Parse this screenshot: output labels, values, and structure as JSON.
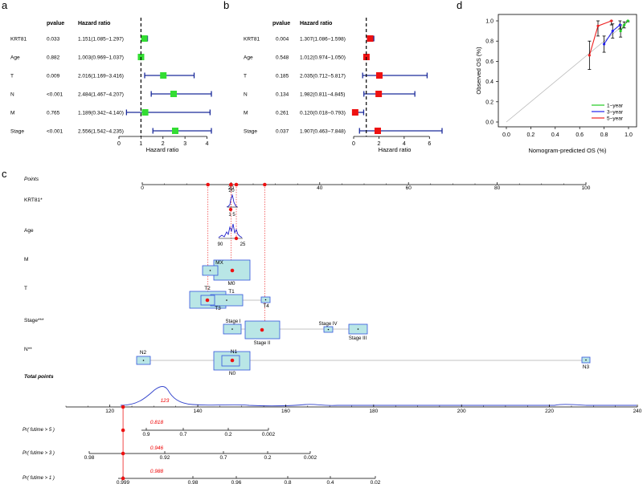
{
  "chart_data": [
    {
      "panel": "a",
      "type": "forest",
      "header": {
        "pvalue": "pvalue",
        "hr": "Hazard ratio"
      },
      "xlabel": "Hazard ratio",
      "xlim": [
        0,
        4.2
      ],
      "xticks": [
        0,
        1,
        2,
        3,
        4
      ],
      "ref_line": 1,
      "marker_color": "#33dd33",
      "rows": [
        {
          "label": "KRT81",
          "pvalue": "0.033",
          "hr_text": "1.151(1.085−1.297)",
          "hr": 1.151,
          "lo": 1.085,
          "hi": 1.297
        },
        {
          "label": "Age",
          "pvalue": "0.882",
          "hr_text": "1.003(0.969−1.037)",
          "hr": 1.003,
          "lo": 0.969,
          "hi": 1.037
        },
        {
          "label": "T",
          "pvalue": "0.009",
          "hr_text": "2.016(1.169−3.416)",
          "hr": 2.016,
          "lo": 1.169,
          "hi": 3.416
        },
        {
          "label": "N",
          "pvalue": "<0.001",
          "hr_text": "2.484(1.467−4.207)",
          "hr": 2.484,
          "lo": 1.467,
          "hi": 4.207
        },
        {
          "label": "M",
          "pvalue": "0.765",
          "hr_text": "1.189(0.342−4.140)",
          "hr": 1.189,
          "lo": 0.342,
          "hi": 4.14
        },
        {
          "label": "Stage",
          "pvalue": "<0.001",
          "hr_text": "2.556(1.542−4.235)",
          "hr": 2.556,
          "lo": 1.542,
          "hi": 4.235
        }
      ]
    },
    {
      "panel": "b",
      "type": "forest",
      "header": {
        "pvalue": "pvalue",
        "hr": "Hazard ratio"
      },
      "xlabel": "Hazard ratio",
      "xlim": [
        0,
        7
      ],
      "xticks": [
        0,
        2,
        4,
        6
      ],
      "ref_line": 1,
      "marker_color": "#ee1111",
      "rows": [
        {
          "label": "KRT81",
          "pvalue": "0.004",
          "hr_text": "1.307(1.086−1.598)",
          "hr": 1.307,
          "lo": 1.086,
          "hi": 1.598
        },
        {
          "label": "Age",
          "pvalue": "0.548",
          "hr_text": "1.012(0.974−1.050)",
          "hr": 1.012,
          "lo": 0.974,
          "hi": 1.05
        },
        {
          "label": "T",
          "pvalue": "0.185",
          "hr_text": "2.035(0.712−5.817)",
          "hr": 2.035,
          "lo": 0.712,
          "hi": 5.817
        },
        {
          "label": "N",
          "pvalue": "0.134",
          "hr_text": "1.982(0.811−4.845)",
          "hr": 1.982,
          "lo": 0.811,
          "hi": 4.845
        },
        {
          "label": "M",
          "pvalue": "0.261",
          "hr_text": "0.120(0.018−0.793)",
          "hr": 0.12,
          "lo": 0.018,
          "hi": 0.793
        },
        {
          "label": "Stage",
          "pvalue": "0.037",
          "hr_text": "1.907(0.463−7.848)",
          "hr": 1.907,
          "lo": 0.463,
          "hi": 7.848
        }
      ]
    },
    {
      "panel": "d",
      "type": "line",
      "title": "",
      "xlabel": "Nomogram-predicted OS (%)",
      "ylabel": "Observed OS (%)",
      "xlim": [
        0,
        1
      ],
      "ylim": [
        0,
        1
      ],
      "xticks": [
        "0.0",
        "0.2",
        "0.4",
        "0.6",
        "0.8",
        "1.0"
      ],
      "yticks": [
        "0.0",
        "0.2",
        "0.4",
        "0.6",
        "0.8",
        "1.0"
      ],
      "series": [
        {
          "name": "1−year",
          "color": "#22cc22",
          "x": [
            0.935,
            0.965,
            0.995
          ],
          "y": [
            0.9,
            0.96,
            1.0
          ],
          "err": [
            0.06,
            0.03,
            0.01
          ]
        },
        {
          "name": "3−year",
          "color": "#2222ee",
          "x": [
            0.8,
            0.87,
            0.93
          ],
          "y": [
            0.77,
            0.9,
            0.96
          ],
          "err": [
            0.08,
            0.07,
            0.04
          ]
        },
        {
          "name": "5−year",
          "color": "#ee2222",
          "x": [
            0.68,
            0.75,
            0.86
          ],
          "y": [
            0.66,
            0.95,
            1.0
          ],
          "err": [
            0.14,
            0.1,
            0.04
          ]
        }
      ]
    },
    {
      "panel": "c",
      "type": "nomogram",
      "points_axis": {
        "label": "Points",
        "range": [
          0,
          100
        ],
        "ticks": [
          "0",
          "20",
          "40",
          "60",
          "80",
          "100"
        ]
      },
      "variables": [
        {
          "label": "KRT81*",
          "ticks": [
            "20",
            "1",
            "5"
          ]
        },
        {
          "label": "Age",
          "ticks": [
            "90",
            "25"
          ]
        },
        {
          "label": "M",
          "boxes": [
            "MX",
            "M0"
          ]
        },
        {
          "label": "T",
          "boxes": [
            "T2",
            "T1",
            "T3",
            "T4"
          ]
        },
        {
          "label": "Stage***",
          "boxes": [
            "Stage I",
            "Stage II",
            "Stage IV",
            "Stage III"
          ]
        },
        {
          "label": "N**",
          "boxes": [
            "N2",
            "N1",
            "N0",
            "N3"
          ]
        }
      ],
      "total_points": {
        "label": "Total points",
        "range": [
          110,
          240
        ],
        "ticks": [
          "120",
          "140",
          "160",
          "180",
          "200",
          "220",
          "240"
        ],
        "value": "123"
      },
      "probabilities": [
        {
          "label": "Pr( futime > 5 )",
          "value": "0.818",
          "ticks": [
            "0.9",
            "0.7",
            "0.2",
            "0.002"
          ]
        },
        {
          "label": "Pr( futime > 3 )",
          "value": "0.946",
          "ticks": [
            "0.98",
            "0.92",
            "0.7",
            "0.2",
            "0.002"
          ]
        },
        {
          "label": "Pr( futime > 1 )",
          "value": "0.988",
          "ticks": [
            "0.999",
            "0.98",
            "0.96",
            "0.8",
            "0.4",
            "0.02"
          ]
        }
      ]
    }
  ],
  "panel_labels": {
    "a": "a",
    "b": "b",
    "c": "c",
    "d": "d"
  }
}
